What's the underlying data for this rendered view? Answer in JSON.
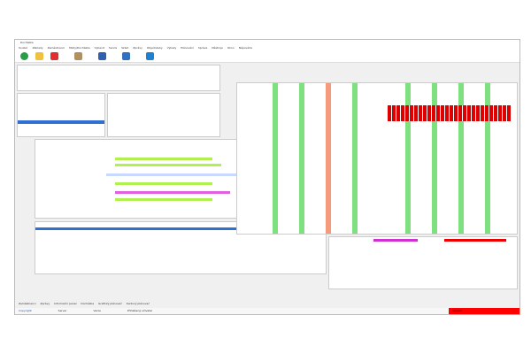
{
  "window": {
    "title": "Docházka"
  },
  "menu": [
    "Soubor",
    "Základy",
    "Zaměstnanci",
    "Mzdy/Docházka",
    "Vybavit",
    "Servis",
    "Sklad",
    "Zprávy",
    "Objednávky",
    "Výkazy",
    "Plánování",
    "Správa",
    "Nástroje",
    "Okno",
    "Nápověda"
  ],
  "toolbar": {
    "icons": [
      "add-icon",
      "edit-icon",
      "delete-icon",
      "grid-icon",
      "card-icon",
      "save-icon",
      "exit-icon"
    ]
  },
  "bottom_tabs": [
    "Zaměstnanci",
    "Zprávy",
    "Informační panel",
    "Docházka",
    "Grafický plánovač",
    "Kartový plánovač"
  ],
  "status": {
    "copyright": "Copyright",
    "server": "Server",
    "version": "Verze",
    "user": "Přihlášený uživatel",
    "alert": "Spojení"
  },
  "colors": {
    "green": "#7fe07f",
    "red": "#ff0000",
    "highlight": "#3070d0"
  }
}
